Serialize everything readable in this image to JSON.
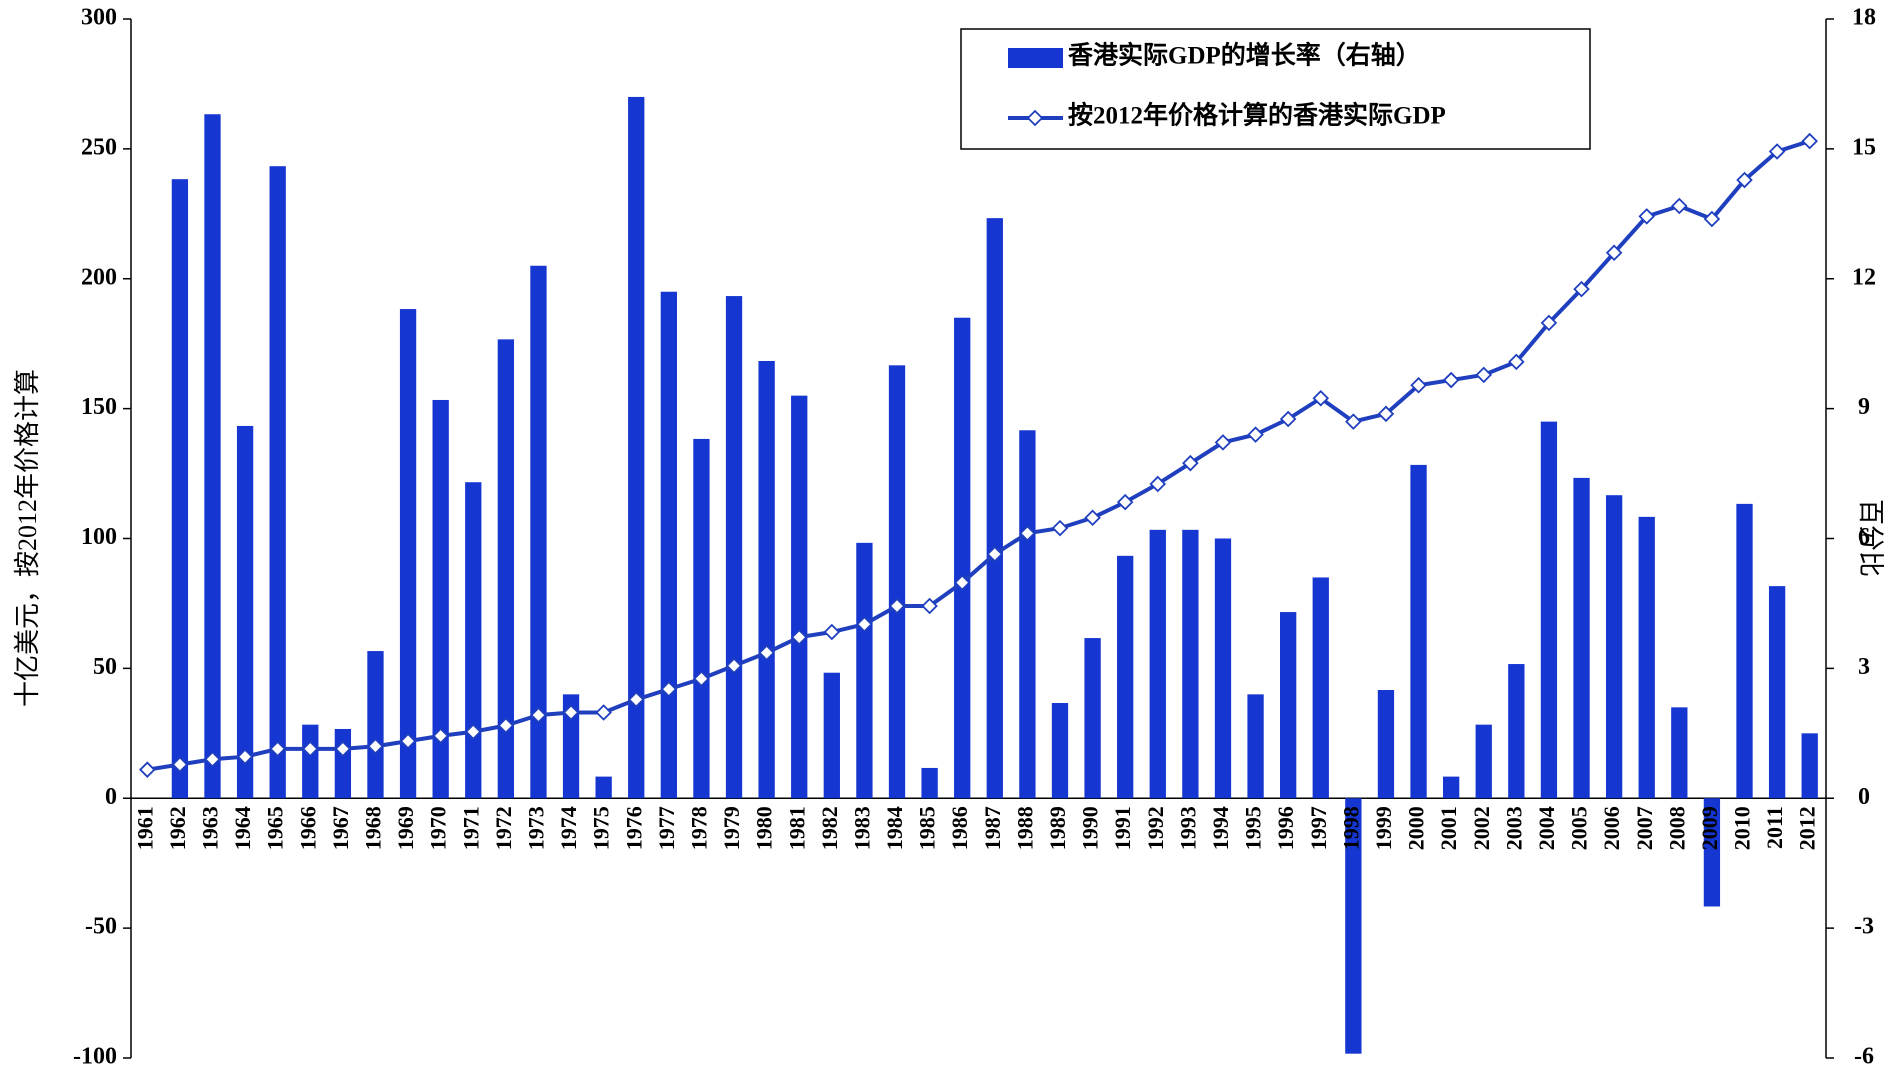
{
  "chart_data": {
    "type": "bar",
    "y_label": "十亿美元，按2012年价格计算",
    "y2_label": "百分比",
    "categories": [
      "1961",
      "1962",
      "1963",
      "1964",
      "1965",
      "1966",
      "1967",
      "1968",
      "1969",
      "1970",
      "1971",
      "1972",
      "1973",
      "1974",
      "1975",
      "1976",
      "1977",
      "1978",
      "1979",
      "1980",
      "1981",
      "1982",
      "1983",
      "1984",
      "1985",
      "1986",
      "1987",
      "1988",
      "1989",
      "1990",
      "1991",
      "1992",
      "1993",
      "1994",
      "1995",
      "1996",
      "1997",
      "1998",
      "1999",
      "2000",
      "2001",
      "2002",
      "2003",
      "2004",
      "2005",
      "2006",
      "2007",
      "2008",
      "2009",
      "2010",
      "2011",
      "2012"
    ],
    "series": [
      {
        "name": "香港实际GDP的增长率（右轴）",
        "type": "bar",
        "axis": "y2",
        "color": "#1536d0",
        "values": [
          null,
          14.3,
          15.8,
          8.6,
          14.6,
          1.7,
          1.6,
          3.4,
          11.3,
          9.2,
          7.3,
          10.6,
          12.3,
          2.4,
          0.5,
          16.2,
          11.7,
          8.3,
          11.6,
          10.1,
          9.3,
          2.9,
          5.9,
          10.0,
          0.7,
          11.1,
          13.4,
          8.5,
          2.2,
          3.7,
          5.6,
          6.2,
          6.2,
          6.0,
          2.4,
          4.3,
          5.1,
          -5.9,
          2.5,
          7.7,
          0.5,
          1.7,
          3.1,
          8.7,
          7.4,
          7.0,
          6.5,
          2.1,
          -2.5,
          6.8,
          4.9,
          1.5
        ]
      },
      {
        "name": "按2012年价格计算的香港实际GDP",
        "type": "line",
        "color": "#1f3fbf",
        "values": [
          11,
          13,
          15,
          16,
          19,
          19,
          19,
          20,
          22,
          24,
          25.6,
          28,
          32,
          33,
          33,
          38,
          42,
          46,
          51,
          56,
          62,
          64,
          67,
          74,
          74,
          83,
          94,
          102,
          104,
          108,
          114,
          121,
          129,
          137,
          140,
          146,
          154,
          145,
          148,
          159,
          161,
          163,
          168,
          183,
          196,
          210,
          224,
          228,
          223,
          238,
          249,
          253
        ]
      }
    ],
    "ylim": [
      -100,
      300
    ],
    "yticks": [
      -100,
      -50,
      0,
      50,
      100,
      150,
      200,
      250,
      300
    ],
    "y2lim": [
      -6,
      18
    ],
    "y2ticks": [
      -6,
      -3,
      0,
      3,
      6,
      9,
      12,
      15,
      18
    ],
    "legend": "top"
  }
}
